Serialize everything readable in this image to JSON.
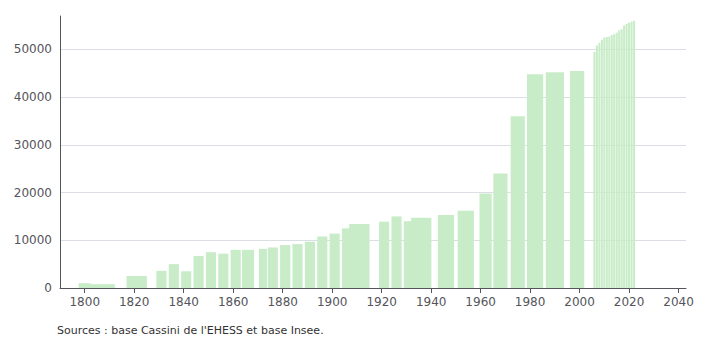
{
  "chart_data": {
    "type": "bar",
    "x": [
      1800,
      1806,
      1821,
      1831,
      1836,
      1841,
      1846,
      1851,
      1856,
      1861,
      1866,
      1872,
      1876,
      1881,
      1886,
      1891,
      1896,
      1901,
      1906,
      1911,
      1921,
      1926,
      1931,
      1936,
      1946,
      1954,
      1962,
      1968,
      1975,
      1982,
      1990,
      1999,
      2006,
      2007,
      2008,
      2009,
      2010,
      2011,
      2012,
      2013,
      2014,
      2015,
      2016,
      2017,
      2018,
      2019,
      2020,
      2021,
      2022
    ],
    "values": [
      1000,
      800,
      2500,
      3600,
      5000,
      3500,
      6700,
      7500,
      7200,
      8000,
      8000,
      8200,
      8500,
      9000,
      9200,
      9700,
      10800,
      11400,
      12500,
      13400,
      13900,
      15000,
      14000,
      14700,
      15300,
      16200,
      19800,
      24000,
      36000,
      44800,
      45200,
      45500,
      49500,
      50800,
      51400,
      52000,
      52500,
      52600,
      52700,
      53000,
      53200,
      53500,
      54000,
      54200,
      55000,
      55300,
      55600,
      55800,
      56000
    ],
    "color": "#c8ecc8",
    "xlim": [
      1790,
      2043
    ],
    "ylim": [
      0,
      57000
    ],
    "xticks": [
      1800,
      1820,
      1840,
      1860,
      1880,
      1900,
      1920,
      1940,
      1960,
      1980,
      2000,
      2020,
      2040
    ],
    "yticks": [
      0,
      10000,
      20000,
      30000,
      40000,
      50000
    ],
    "grid": true,
    "annotations": [
      "Sources : base Cassini de l'EHESS et base Insee."
    ]
  }
}
